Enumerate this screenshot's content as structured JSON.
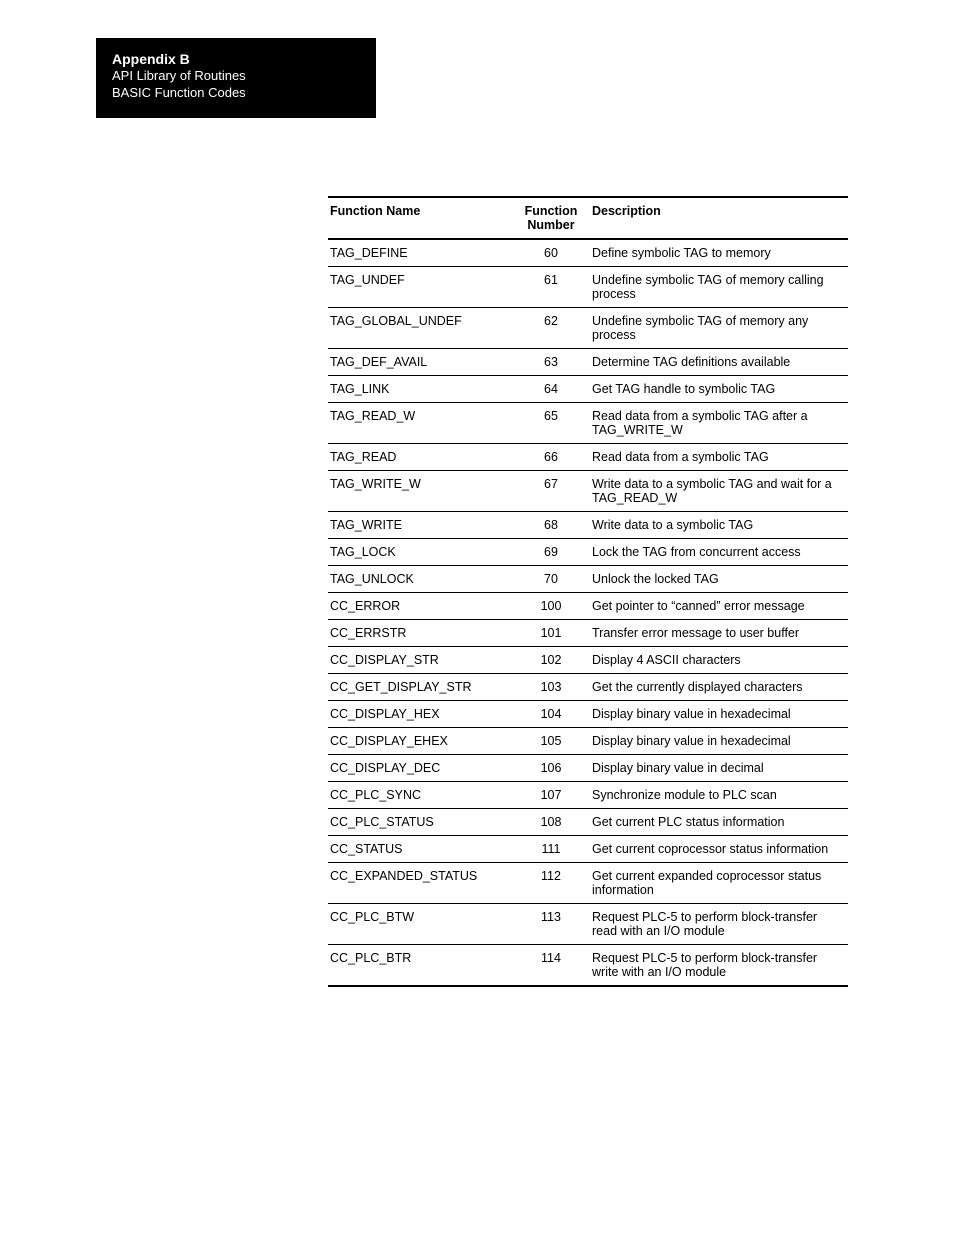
{
  "header": {
    "title": "Appendix B",
    "line1": "API Library of Routines",
    "line2": "BASIC Function Codes"
  },
  "table": {
    "columns": {
      "name": "Function Name",
      "number": "Function Number",
      "description": "Description"
    },
    "rows": [
      {
        "name": "TAG_DEFINE",
        "number": "60",
        "description": "Define symbolic TAG to memory"
      },
      {
        "name": "TAG_UNDEF",
        "number": "61",
        "description": "Undefine symbolic TAG of memory calling process"
      },
      {
        "name": "TAG_GLOBAL_UNDEF",
        "number": "62",
        "description": "Undefine symbolic TAG of memory any process"
      },
      {
        "name": "TAG_DEF_AVAIL",
        "number": "63",
        "description": "Determine TAG definitions available"
      },
      {
        "name": "TAG_LINK",
        "number": "64",
        "description": "Get TAG handle to symbolic TAG"
      },
      {
        "name": "TAG_READ_W",
        "number": "65",
        "description": "Read data from a symbolic TAG after a TAG_WRITE_W"
      },
      {
        "name": "TAG_READ",
        "number": "66",
        "description": "Read data from a symbolic TAG"
      },
      {
        "name": "TAG_WRITE_W",
        "number": "67",
        "description": "Write data to a symbolic TAG and wait for a TAG_READ_W"
      },
      {
        "name": "TAG_WRITE",
        "number": "68",
        "description": "Write data to a symbolic TAG"
      },
      {
        "name": "TAG_LOCK",
        "number": "69",
        "description": "Lock the TAG from concurrent access"
      },
      {
        "name": "TAG_UNLOCK",
        "number": "70",
        "description": "Unlock the locked TAG"
      },
      {
        "name": "CC_ERROR",
        "number": "100",
        "description": "Get pointer to “canned” error message"
      },
      {
        "name": "CC_ERRSTR",
        "number": "101",
        "description": "Transfer error message to user buffer"
      },
      {
        "name": "CC_DISPLAY_STR",
        "number": "102",
        "description": "Display 4 ASCII characters"
      },
      {
        "name": "CC_GET_DISPLAY_STR",
        "number": "103",
        "description": "Get the currently displayed characters"
      },
      {
        "name": "CC_DISPLAY_HEX",
        "number": "104",
        "description": "Display binary value in hexadecimal"
      },
      {
        "name": "CC_DISPLAY_EHEX",
        "number": "105",
        "description": "Display binary value in hexadecimal"
      },
      {
        "name": "CC_DISPLAY_DEC",
        "number": "106",
        "description": "Display binary value in decimal"
      },
      {
        "name": "CC_PLC_SYNC",
        "number": "107",
        "description": "Synchronize module to PLC scan"
      },
      {
        "name": "CC_PLC_STATUS",
        "number": "108",
        "description": "Get current PLC status information"
      },
      {
        "name": "CC_STATUS",
        "number": "111",
        "description": "Get current coprocessor status information"
      },
      {
        "name": "CC_EXPANDED_STATUS",
        "number": "112",
        "description": "Get current expanded coprocessor status information"
      },
      {
        "name": "CC_PLC_BTW",
        "number": "113",
        "description": "Request PLC-5 to perform block-transfer read with an I/O module"
      },
      {
        "name": "CC_PLC_BTR",
        "number": "114",
        "description": "Request PLC-5 to perform block-transfer write with an I/O module"
      }
    ]
  }
}
